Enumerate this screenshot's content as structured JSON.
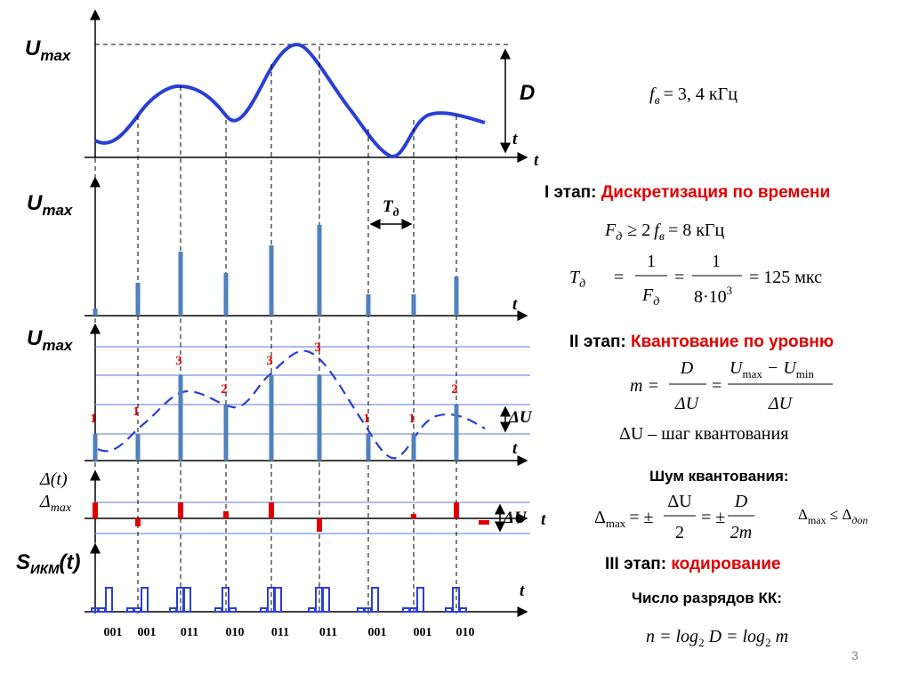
{
  "left_diagram": {
    "panel1": {
      "y_label": {
        "main": "U",
        "sub": "max"
      },
      "range_label": "D",
      "t_labels": [
        "t",
        "t"
      ]
    },
    "panel2": {
      "y_label": {
        "main": "U",
        "sub": "max"
      },
      "period_label": {
        "main": "T",
        "sub": "д"
      },
      "t_label": "t"
    },
    "panel3": {
      "y_label": {
        "main": "U",
        "sub": "max"
      },
      "level_labels": [
        "1",
        "1",
        "3",
        "2",
        "3",
        "3",
        "1",
        "1",
        "2"
      ],
      "step_label": "ΔU",
      "t_label": "t"
    },
    "panel4": {
      "y_label_1": "Δ(t)",
      "y_label_2": {
        "main": "Δ",
        "sub": "max"
      },
      "step_label": "ΔU",
      "t_label": "t"
    },
    "panel5": {
      "y_label": {
        "main": "S",
        "sub": "ИКМ",
        "tail": "(t)"
      },
      "t_label": "t",
      "codes": [
        "001",
        "001",
        "011",
        "010",
        "011",
        "011",
        "001",
        "001",
        "010"
      ]
    }
  },
  "right_panel": {
    "f_b": {
      "main": "f",
      "sub": "в",
      "rhs": "= 3, 4 кГц"
    },
    "stage1": {
      "label": "I этап:",
      "name": "Дискретизация по времени"
    },
    "f_d": {
      "main": "F",
      "sub": "д",
      "mid": "≥ 2",
      "f": "f",
      "f_sub": "в",
      "rhs": "= 8 кГц"
    },
    "t_d": {
      "main": "T",
      "sub": "д",
      "eq1": "=",
      "num1": "1",
      "den1_main": "F",
      "den1_sub": "д",
      "eq2": "=",
      "num2": "1",
      "den2": "8·10",
      "den2_exp": "3",
      "rhs": "= 125 мкс"
    },
    "stage2": {
      "label": "II этап:",
      "name": "Квантование по уровню"
    },
    "m_formula": {
      "lhs": "m =",
      "num1": "D",
      "den1": "ΔU",
      "eq": "=",
      "num2_a": "U",
      "num2_a_sub": "max",
      "num2_minus": " − U",
      "num2_b_sub": "min",
      "den2": "ΔU"
    },
    "step_note": "ΔU – шаг квантования",
    "noise_title": "Шум квантования:",
    "noise_formula": {
      "main": "Δ",
      "sub": "max",
      "eq": "= ±",
      "num1": "ΔU",
      "den1": "2",
      "eq2": "= ±",
      "num2": "D",
      "den2": "2m"
    },
    "noise_limit": {
      "main": "Δ",
      "sub": "max",
      "rel": " ≤ Δ",
      "sub2": "доп"
    },
    "stage3": {
      "label": "III этап:",
      "name": "кодирование"
    },
    "bits_title": "Число разрядов КК:",
    "bits_formula": {
      "lhs": "n = log",
      "sub1": "2",
      "mid": " D = log",
      "sub2": "2",
      "rhs": " m"
    }
  },
  "page_number": "3"
}
